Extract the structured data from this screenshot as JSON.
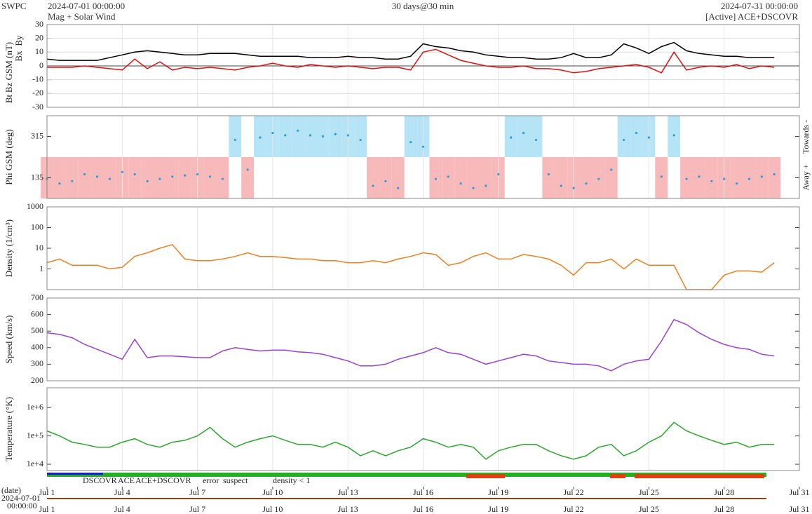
{
  "header": {
    "source": "SWPC",
    "start": "2024-07-01 00:00:00",
    "subtitle": "Mag + Solar Wind",
    "span": "30 days@30 min",
    "end": "2024-07-31 00:00:00",
    "status": "[Active] ACE+DSCOVR"
  },
  "footer": {
    "date_label": "(date)",
    "date": "2024-07-01",
    "time": "00:00:00",
    "legend": [
      {
        "text": "DSCOVR",
        "color": "#1a1ad6"
      },
      {
        "text": "ACE",
        "color": "#22b022"
      },
      {
        "text": "ACE+DSCOVR",
        "color": "#d61ad6"
      },
      {
        "text": "error",
        "color": "#e01010"
      },
      {
        "text": "suspect",
        "color": "#e0c000"
      },
      {
        "text": "density < 1",
        "color": "#f07f1e"
      }
    ]
  },
  "time": {
    "xlim": [
      1,
      31
    ],
    "xticks": [
      {
        "value": 1,
        "label": "Jul 1"
      },
      {
        "value": 4,
        "label": "Jul 4"
      },
      {
        "value": 7,
        "label": "Jul 7"
      },
      {
        "value": 10,
        "label": "Jul 10"
      },
      {
        "value": 13,
        "label": "Jul 13"
      },
      {
        "value": 16,
        "label": "Jul 16"
      },
      {
        "value": 19,
        "label": "Jul 19"
      },
      {
        "value": 22,
        "label": "Jul 22"
      },
      {
        "value": 25,
        "label": "Jul 25"
      },
      {
        "value": 28,
        "label": "Jul 28"
      },
      {
        "value": 31,
        "label": "Jul 31"
      }
    ],
    "x": [
      1,
      1.5,
      2,
      2.5,
      3,
      3.5,
      4,
      4.5,
      5,
      5.5,
      6,
      6.5,
      7,
      7.5,
      8,
      8.5,
      9,
      9.5,
      10,
      10.5,
      11,
      11.5,
      12,
      12.5,
      13,
      13.5,
      14,
      14.5,
      15,
      15.5,
      16,
      16.5,
      17,
      17.5,
      18,
      18.5,
      19,
      19.5,
      20,
      20.5,
      21,
      21.5,
      22,
      22.5,
      23,
      23.5,
      24,
      24.5,
      25,
      25.5,
      26,
      26.5,
      27,
      27.5,
      28,
      28.5,
      29,
      29.5,
      30
    ]
  },
  "chart_data": [
    {
      "type": "line",
      "ylim": [
        -30,
        30
      ],
      "yticks": [
        -30,
        -20,
        -10,
        0,
        10,
        20,
        30
      ],
      "log": false,
      "grid": true,
      "extra_labels": [
        {
          "text": "Bx",
          "color": "#8a2be2"
        },
        {
          "text": "By",
          "color": "#1ab0e0"
        }
      ],
      "series": [
        {
          "name": "Bt",
          "color": "#000000",
          "values": [
            5,
            4,
            4,
            4,
            4,
            6,
            8,
            10,
            11,
            10,
            9,
            8,
            8,
            9,
            9,
            9,
            8,
            7,
            7,
            7,
            7,
            6,
            6,
            6,
            7,
            6,
            6,
            5,
            5,
            7,
            16,
            14,
            13,
            11,
            10,
            8,
            7,
            6,
            6,
            5,
            5,
            6,
            9,
            6,
            6,
            8,
            16,
            13,
            9,
            14,
            17,
            11,
            9,
            8,
            7,
            7,
            6,
            6,
            6
          ]
        },
        {
          "name": "Bz GSM (nT)",
          "color": "#e01010",
          "values": [
            -1,
            -1,
            -1,
            0,
            -1,
            -2,
            -3,
            5,
            -2,
            3,
            -3,
            -1,
            -2,
            -1,
            -2,
            -3,
            -1,
            0,
            2,
            0,
            -1,
            1,
            0,
            -1,
            0,
            -1,
            -2,
            -1,
            -1,
            -3,
            10,
            12,
            8,
            4,
            2,
            0,
            -1,
            -1,
            0,
            -2,
            -2,
            -3,
            -5,
            -4,
            -2,
            -1,
            0,
            1,
            -1,
            -5,
            10,
            -3,
            -1,
            0,
            -1,
            1,
            -2,
            0,
            -1
          ]
        }
      ]
    },
    {
      "type": "scatter",
      "ylim": [
        45,
        405
      ],
      "yticks": [
        135,
        315
      ],
      "log": false,
      "grid": false,
      "side_labels": [
        "Away +",
        "Towards -"
      ],
      "away_color": "#f7b9b9",
      "towards_color": "#b6e4f7",
      "series": [
        {
          "name": "Phi GSM (deg)",
          "color": "#2a9fd8",
          "values": [
            130,
            110,
            120,
            150,
            140,
            130,
            160,
            150,
            120,
            130,
            140,
            145,
            150,
            140,
            130,
            300,
            170,
            310,
            330,
            320,
            340,
            320,
            315,
            325,
            320,
            300,
            100,
            120,
            90,
            290,
            270,
            130,
            140,
            110,
            90,
            100,
            150,
            310,
            330,
            300,
            150,
            100,
            90,
            110,
            130,
            170,
            300,
            330,
            310,
            140,
            320,
            130,
            140,
            120,
            130,
            110,
            130,
            140,
            150
          ]
        }
      ]
    },
    {
      "type": "line",
      "ylim": [
        0.1,
        1000
      ],
      "yticks": [
        1,
        10,
        100,
        1000
      ],
      "log": true,
      "grid": false,
      "series": [
        {
          "name": "Density (1/cm³)",
          "color": "#f07f1e",
          "values": [
            2,
            3,
            1.5,
            1.5,
            1.5,
            1,
            1.2,
            4,
            6,
            10,
            15,
            3,
            2.5,
            2.5,
            3,
            4,
            6,
            4,
            4,
            3.5,
            3,
            3,
            2.5,
            2.5,
            2,
            2,
            2.5,
            2,
            3,
            4,
            6,
            5,
            1.5,
            2,
            4,
            6,
            3,
            3,
            5,
            4,
            3,
            1.5,
            0.5,
            2,
            2,
            3,
            1,
            3,
            1.5,
            1.5,
            1.5,
            0.1,
            0.1,
            0.1,
            0.5,
            0.8,
            0.8,
            0.7,
            2
          ]
        }
      ]
    },
    {
      "type": "line",
      "ylim": [
        200,
        700
      ],
      "yticks": [
        200,
        300,
        400,
        500,
        600,
        700
      ],
      "log": false,
      "grid": false,
      "series": [
        {
          "name": "Speed (km/s)",
          "color": "#9b3fd8",
          "values": [
            490,
            480,
            460,
            420,
            390,
            360,
            330,
            450,
            340,
            350,
            350,
            345,
            340,
            340,
            380,
            400,
            390,
            380,
            385,
            385,
            375,
            370,
            360,
            340,
            320,
            290,
            290,
            300,
            330,
            350,
            370,
            400,
            370,
            360,
            330,
            300,
            320,
            340,
            360,
            350,
            320,
            310,
            300,
            300,
            290,
            260,
            300,
            320,
            330,
            440,
            570,
            540,
            490,
            450,
            420,
            400,
            390,
            360,
            350
          ]
        }
      ]
    },
    {
      "type": "line",
      "ylim": [
        6000,
        5000000
      ],
      "yticks": [
        {
          "value": 10000,
          "label": "1e+4"
        },
        {
          "value": 100000,
          "label": "1e+5"
        },
        {
          "value": 1000000,
          "label": "1e+6"
        }
      ],
      "log": true,
      "grid": false,
      "series": [
        {
          "name": "Temperature (°K)",
          "color": "#2aa82a",
          "values": [
            150000,
            100000,
            60000,
            50000,
            40000,
            40000,
            60000,
            80000,
            50000,
            40000,
            60000,
            70000,
            100000,
            200000,
            80000,
            40000,
            60000,
            80000,
            100000,
            70000,
            50000,
            50000,
            40000,
            60000,
            40000,
            20000,
            30000,
            20000,
            30000,
            40000,
            80000,
            60000,
            40000,
            50000,
            40000,
            15000,
            30000,
            40000,
            50000,
            50000,
            30000,
            20000,
            15000,
            20000,
            40000,
            50000,
            20000,
            30000,
            60000,
            100000,
            300000,
            150000,
            100000,
            70000,
            50000,
            60000,
            40000,
            50000,
            50000
          ]
        }
      ]
    }
  ]
}
